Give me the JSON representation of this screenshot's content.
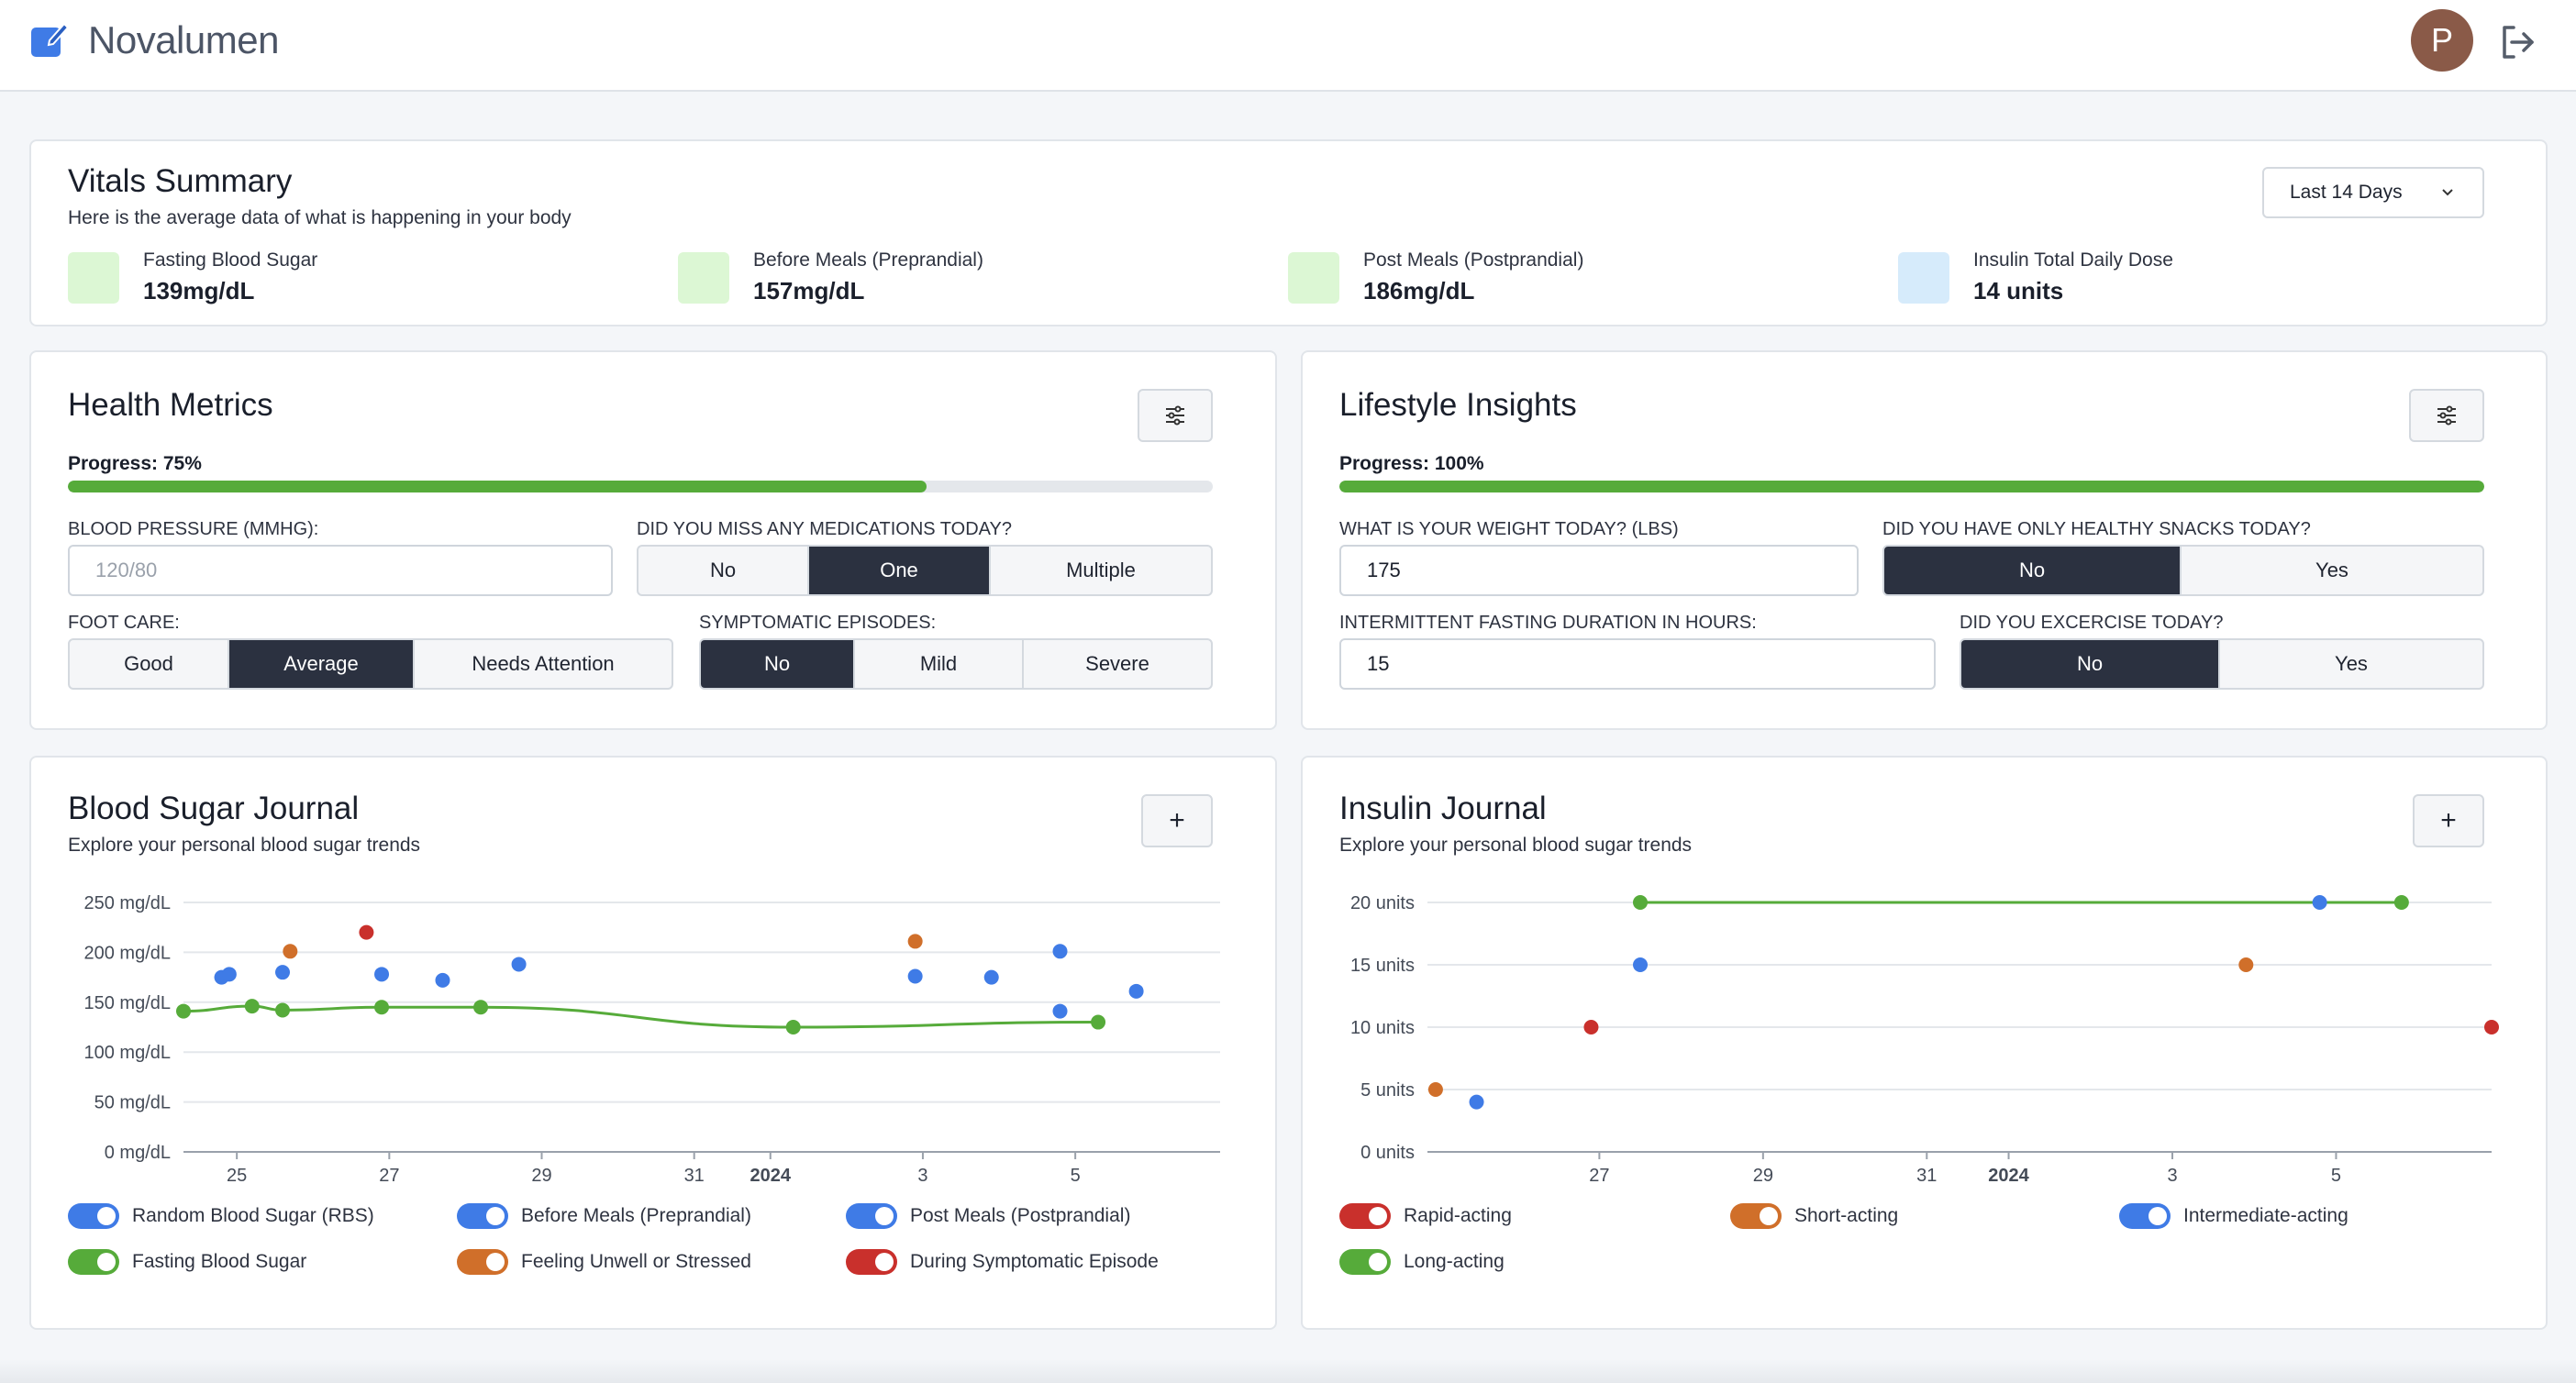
{
  "app": {
    "name": "Novalumen",
    "user_initial": "P",
    "logo_icon": "edit-square-icon",
    "logout_icon": "logout-icon"
  },
  "vitals": {
    "title": "Vitals Summary",
    "subtitle": "Here is the average data of what is happening in your body",
    "range": "Last 14 Days",
    "items": [
      {
        "label": "Fasting Blood Sugar",
        "value": "139mg/dL",
        "color": "#dcf7d4"
      },
      {
        "label": "Before Meals (Preprandial)",
        "value": "157mg/dL",
        "color": "#dcf7d4"
      },
      {
        "label": "Post Meals (Postprandial)",
        "value": "186mg/dL",
        "color": "#dcf7d4"
      },
      {
        "label": "Insulin Total Daily Dose",
        "value": "14 units",
        "color": "#d6ebfb"
      }
    ]
  },
  "health": {
    "title": "Health Metrics",
    "progress_label": "Progress: 75%",
    "progress": 0.75,
    "bp_label": "BLOOD PRESSURE (MMHG):",
    "bp_placeholder": "120/80",
    "meds_label": "DID YOU MISS ANY MEDICATIONS TODAY?",
    "meds_options": [
      "No",
      "One",
      "Multiple"
    ],
    "foot_label": "FOOT CARE:",
    "foot_options": [
      "Good",
      "Average",
      "Needs Attention"
    ],
    "episodes_label": "SYMPTOMATIC EPISODES:",
    "episodes_options": [
      "No",
      "Mild",
      "Severe"
    ]
  },
  "lifestyle": {
    "title": "Lifestyle Insights",
    "progress_label": "Progress: 100%",
    "progress": 1.0,
    "weight_label": "WHAT IS YOUR WEIGHT TODAY? (LBS)",
    "weight_value": "175",
    "snacks_label": "DID YOU HAVE ONLY HEALTHY SNACKS TODAY?",
    "snacks_options": [
      "No",
      "Yes"
    ],
    "fasting_label": "INTERMITTENT FASTING DURATION IN HOURS:",
    "fasting_value": "15",
    "exercise_label": "DID YOU EXCERCISE TODAY?",
    "exercise_options": [
      "No",
      "Yes"
    ]
  },
  "blood_sugar": {
    "title": "Blood Sugar Journal",
    "subtitle": "Explore your personal blood sugar trends",
    "add_label": "+",
    "legend": [
      {
        "label": "Random Blood Sugar (RBS)",
        "color": "#3f7be6"
      },
      {
        "label": "Before Meals (Preprandial)",
        "color": "#3f7be6"
      },
      {
        "label": "Post Meals (Postprandial)",
        "color": "#3f7be6"
      },
      {
        "label": "Fasting Blood Sugar",
        "color": "#56ab3a"
      },
      {
        "label": "Feeling Unwell or Stressed",
        "color": "#d06f2a"
      },
      {
        "label": "During Symptomatic Episode",
        "color": "#c9302c"
      }
    ]
  },
  "insulin": {
    "title": "Insulin Journal",
    "subtitle": "Explore your personal blood sugar trends",
    "add_label": "+",
    "legend": [
      {
        "label": "Rapid-acting",
        "color": "#c9302c"
      },
      {
        "label": "Short-acting",
        "color": "#d06f2a"
      },
      {
        "label": "Intermediate-acting",
        "color": "#3f7be6"
      },
      {
        "label": "Long-acting",
        "color": "#56ab3a"
      }
    ]
  },
  "chart_data": [
    {
      "type": "scatter",
      "title": "Blood Sugar Journal",
      "ylabel": "mg/dL",
      "ylim": [
        0,
        250
      ],
      "xlim": [
        24.3,
        37.9
      ],
      "yticks": [
        "0 mg/dL",
        "50 mg/dL",
        "100 mg/dL",
        "150 mg/dL",
        "200 mg/dL",
        "250 mg/dL"
      ],
      "ytick_values": [
        0,
        50,
        100,
        150,
        200,
        250
      ],
      "xticks": [
        "25",
        "27",
        "29",
        "31",
        "2024",
        "3",
        "5"
      ],
      "xtick_values": [
        25,
        27,
        29,
        31,
        32,
        34,
        36
      ],
      "series": [
        {
          "name": "Fasting Blood Sugar",
          "color": "#56ab3a",
          "line": true,
          "points": [
            [
              24.3,
              141
            ],
            [
              25.2,
              146
            ],
            [
              25.6,
              142
            ],
            [
              26.9,
              145
            ],
            [
              28.2,
              145
            ],
            [
              32.3,
              125
            ],
            [
              36.3,
              130
            ]
          ]
        },
        {
          "name": "Random Blood Sugar (RBS)",
          "color": "#3f7be6",
          "points": [
            [
              24.8,
              175
            ],
            [
              24.9,
              178
            ],
            [
              25.6,
              180
            ],
            [
              26.9,
              178
            ],
            [
              27.7,
              172
            ],
            [
              28.7,
              188
            ],
            [
              33.9,
              176
            ],
            [
              34.9,
              175
            ],
            [
              35.8,
              201
            ],
            [
              35.8,
              141
            ],
            [
              36.8,
              161
            ]
          ]
        },
        {
          "name": "Feeling Unwell or Stressed",
          "color": "#d06f2a",
          "points": [
            [
              25.7,
              201
            ],
            [
              33.9,
              211
            ]
          ]
        },
        {
          "name": "During Symptomatic Episode",
          "color": "#c9302c",
          "points": [
            [
              26.7,
              220
            ]
          ]
        }
      ]
    },
    {
      "type": "scatter",
      "title": "Insulin Journal",
      "ylabel": "units",
      "ylim": [
        0,
        20
      ],
      "xlim": [
        24.9,
        37.9
      ],
      "yticks": [
        "0 units",
        "5 units",
        "10 units",
        "15 units",
        "20 units"
      ],
      "ytick_values": [
        0,
        5,
        10,
        15,
        20
      ],
      "xticks": [
        "27",
        "29",
        "31",
        "2024",
        "3",
        "5"
      ],
      "xtick_values": [
        27,
        29,
        31,
        32,
        34,
        36
      ],
      "series": [
        {
          "name": "Long-acting",
          "color": "#56ab3a",
          "line": true,
          "points": [
            [
              27.5,
              20
            ],
            [
              36.8,
              20
            ]
          ]
        },
        {
          "name": "Intermediate-acting",
          "color": "#3f7be6",
          "points": [
            [
              27.5,
              15
            ],
            [
              25.5,
              4
            ],
            [
              35.8,
              20
            ]
          ]
        },
        {
          "name": "Short-acting",
          "color": "#d06f2a",
          "points": [
            [
              25.0,
              5
            ],
            [
              34.9,
              15
            ]
          ]
        },
        {
          "name": "Rapid-acting",
          "color": "#c9302c",
          "points": [
            [
              26.9,
              10
            ],
            [
              37.9,
              10
            ]
          ]
        }
      ]
    }
  ]
}
